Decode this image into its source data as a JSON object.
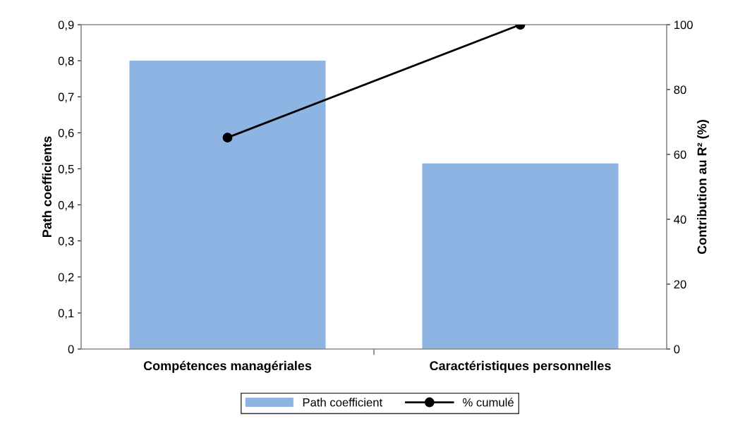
{
  "chart_data": {
    "type": "bar",
    "categories": [
      "Compétences managériales",
      "Caractéristiques personnelles"
    ],
    "ylabel": "Path coefficients",
    "y2label": "Contribution au R² (%)",
    "series": [
      {
        "name": "Path coefficient",
        "color": "#8eb4e3",
        "values": [
          0.8,
          0.515
        ]
      },
      {
        "name": "% cumulé",
        "type": "line",
        "axis": "y2",
        "color": "#000000",
        "marker": "circle",
        "values": [
          65.2,
          100
        ]
      }
    ],
    "ylim": [
      0,
      0.9
    ],
    "yticks": [
      0,
      {
        "value": 0.1,
        "label": "0,1"
      },
      {
        "value": 0.2,
        "label": "0,2"
      },
      {
        "value": 0.3,
        "label": "0,3"
      },
      {
        "value": 0.4,
        "label": "0,4"
      },
      {
        "value": 0.5,
        "label": "0,5"
      },
      {
        "value": 0.6,
        "label": "0,6"
      },
      {
        "value": 0.7,
        "label": "0,7"
      },
      {
        "value": 0.8,
        "label": "0,8"
      },
      {
        "value": 0.9,
        "label": "0,9"
      }
    ],
    "y2lim": [
      0,
      100
    ],
    "y2ticks": [
      0,
      20,
      40,
      60,
      80,
      100
    ],
    "grid": false,
    "legend": "bottom"
  }
}
